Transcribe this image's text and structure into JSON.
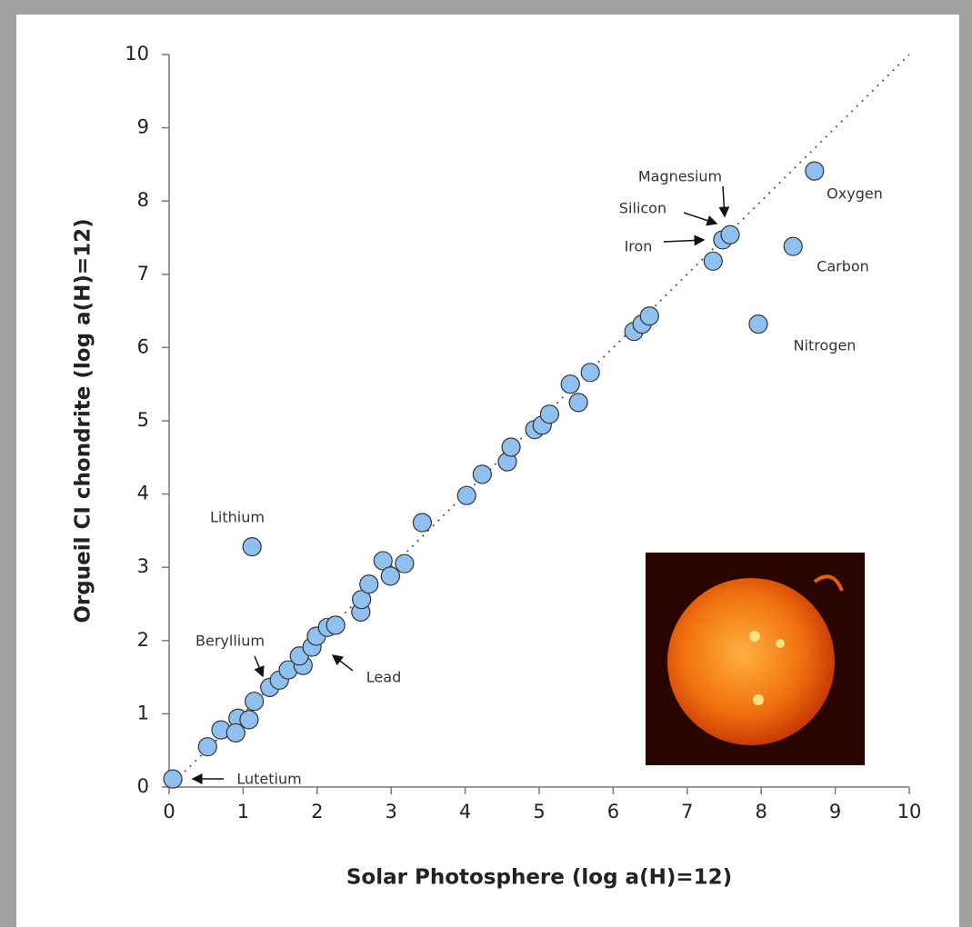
{
  "chart_data": {
    "type": "scatter",
    "xlabel": "Solar Photosphere (log a(H)=12)",
    "ylabel": "Orgueil CI chondrite (log a(H)=12)",
    "x": [
      0.05,
      0.52,
      0.7,
      0.93,
      0.9,
      1.08,
      1.15,
      1.36,
      1.49,
      1.61,
      1.81,
      1.76,
      1.93,
      1.99,
      2.14,
      2.25,
      2.59,
      2.6,
      2.7,
      2.89,
      2.99,
      3.18,
      3.42,
      4.02,
      4.23,
      4.57,
      4.62,
      4.94,
      5.04,
      5.14,
      5.42,
      5.53,
      5.69,
      6.28,
      6.39,
      6.49,
      7.35,
      7.48,
      7.58,
      8.43,
      8.72,
      7.96,
      1.12
    ],
    "values": [
      0.11,
      0.55,
      0.78,
      0.94,
      0.74,
      0.92,
      1.17,
      1.36,
      1.46,
      1.6,
      1.66,
      1.79,
      1.91,
      2.06,
      2.18,
      2.21,
      2.39,
      2.56,
      2.77,
      3.09,
      2.88,
      3.05,
      3.61,
      3.98,
      4.27,
      4.44,
      4.64,
      4.88,
      4.94,
      5.09,
      5.5,
      5.25,
      5.66,
      6.22,
      6.32,
      6.43,
      7.18,
      7.47,
      7.54,
      7.38,
      8.41,
      6.32,
      3.28
    ],
    "color": "#8fc0ef",
    "xlim": [
      0,
      10
    ],
    "ylim": [
      0,
      10
    ],
    "xticks": [
      0,
      1,
      2,
      3,
      4,
      5,
      6,
      7,
      8,
      9,
      10
    ],
    "yticks": [
      0,
      1,
      2,
      3,
      4,
      5,
      6,
      7,
      8,
      9,
      10
    ],
    "diagonal": true,
    "annotations": [
      "Magnesium",
      "Silicon",
      "Iron",
      "Oxygen",
      "Carbon",
      "Nitrogen",
      "Lithium",
      "Beryllium",
      "Lead",
      "Lutetium"
    ]
  }
}
